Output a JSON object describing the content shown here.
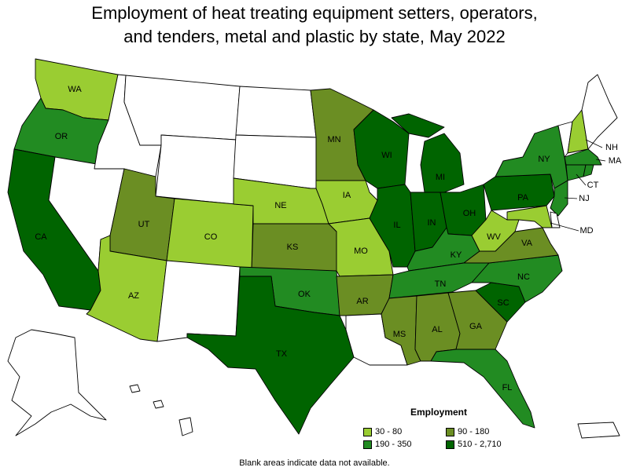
{
  "title_line1": "Employment of heat treating equipment setters, operators,",
  "title_line2": "and tenders, metal and plastic by state, May 2022",
  "legend": {
    "title": "Employment",
    "items": [
      {
        "label": "30 - 80",
        "color": "#9acd32"
      },
      {
        "label": "90 - 180",
        "color": "#6b8e23"
      },
      {
        "label": "190 - 350",
        "color": "#228b22"
      },
      {
        "label": "510 - 2,710",
        "color": "#006400"
      }
    ]
  },
  "note": "Blank areas indicate data not available.",
  "states": {
    "WA": {
      "label": "WA",
      "bin": 0
    },
    "OR": {
      "label": "OR",
      "bin": 2
    },
    "CA": {
      "label": "CA",
      "bin": 3
    },
    "NV": {
      "label": "",
      "bin": -1
    },
    "ID": {
      "label": "",
      "bin": -1
    },
    "MT": {
      "label": "",
      "bin": -1
    },
    "WY": {
      "label": "",
      "bin": -1
    },
    "UT": {
      "label": "UT",
      "bin": 1
    },
    "AZ": {
      "label": "AZ",
      "bin": 0
    },
    "CO": {
      "label": "CO",
      "bin": 0
    },
    "NM": {
      "label": "",
      "bin": -1
    },
    "ND": {
      "label": "",
      "bin": -1
    },
    "SD": {
      "label": "",
      "bin": -1
    },
    "NE": {
      "label": "NE",
      "bin": 0
    },
    "KS": {
      "label": "KS",
      "bin": 1
    },
    "OK": {
      "label": "OK",
      "bin": 2
    },
    "TX": {
      "label": "TX",
      "bin": 3
    },
    "MN": {
      "label": "MN",
      "bin": 1
    },
    "IA": {
      "label": "IA",
      "bin": 0
    },
    "MO": {
      "label": "MO",
      "bin": 0
    },
    "AR": {
      "label": "AR",
      "bin": 1
    },
    "LA": {
      "label": "",
      "bin": -1
    },
    "WI": {
      "label": "WI",
      "bin": 3
    },
    "IL": {
      "label": "IL",
      "bin": 3
    },
    "MI": {
      "label": "MI",
      "bin": 3
    },
    "IN": {
      "label": "IN",
      "bin": 3
    },
    "OH": {
      "label": "OH",
      "bin": 3
    },
    "KY": {
      "label": "KY",
      "bin": 2
    },
    "TN": {
      "label": "TN",
      "bin": 2
    },
    "MS": {
      "label": "MS",
      "bin": 1
    },
    "AL": {
      "label": "AL",
      "bin": 1
    },
    "GA": {
      "label": "GA",
      "bin": 1
    },
    "FL": {
      "label": "FL",
      "bin": 2
    },
    "SC": {
      "label": "SC",
      "bin": 3
    },
    "NC": {
      "label": "NC",
      "bin": 2
    },
    "VA": {
      "label": "VA",
      "bin": 1
    },
    "WV": {
      "label": "WV",
      "bin": 0
    },
    "PA": {
      "label": "PA",
      "bin": 3
    },
    "NY": {
      "label": "NY",
      "bin": 2
    },
    "VT": {
      "label": "",
      "bin": -1
    },
    "NH": {
      "label": "NH",
      "bin": 0
    },
    "ME": {
      "label": "",
      "bin": -1
    },
    "MA": {
      "label": "MA",
      "bin": 2
    },
    "CT": {
      "label": "CT",
      "bin": 2
    },
    "RI": {
      "label": "",
      "bin": 2
    },
    "NJ": {
      "label": "NJ",
      "bin": 2
    },
    "DE": {
      "label": "",
      "bin": -1
    },
    "MD": {
      "label": "MD",
      "bin": 0
    },
    "AK": {
      "label": "",
      "bin": -1
    },
    "HI": {
      "label": "",
      "bin": -1
    },
    "PR": {
      "label": "",
      "bin": -1
    }
  }
}
